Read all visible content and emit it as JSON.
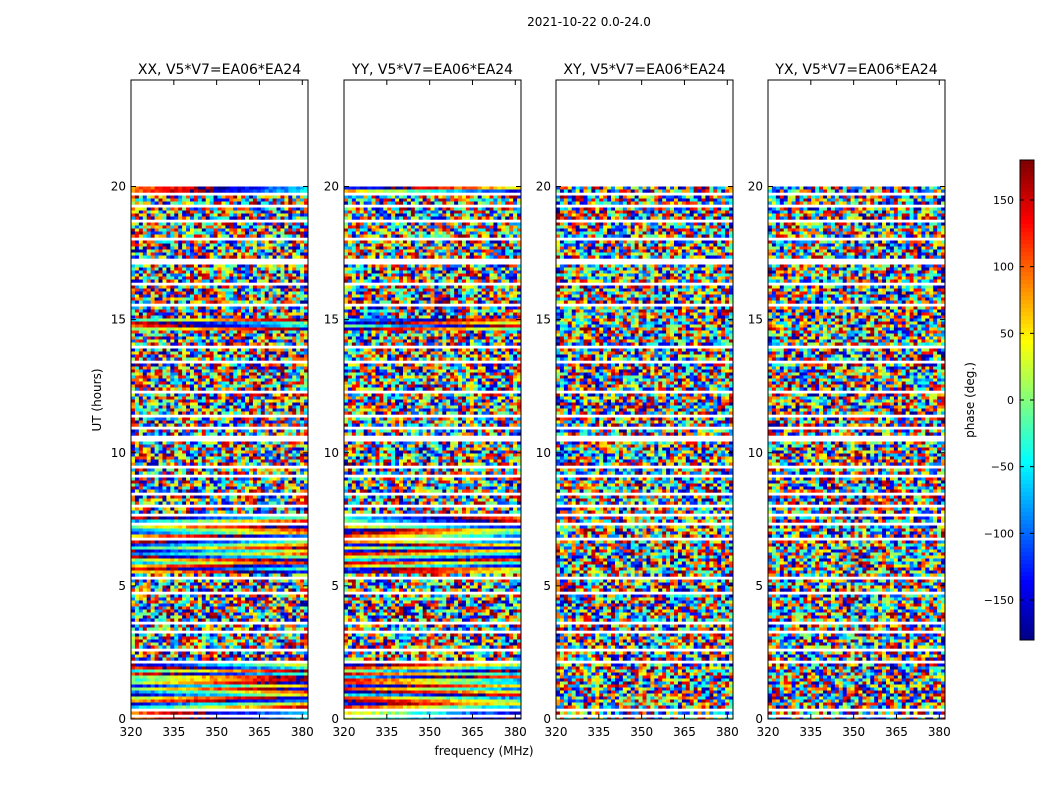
{
  "chart_data": {
    "type": "heatmap",
    "suptitle": "2021-10-22 0.0-24.0",
    "ylabel": "UT (hours)",
    "xlabel": "frequency (MHz)",
    "xlim": [
      320,
      382
    ],
    "ylim": [
      0,
      24
    ],
    "xticks": [
      320,
      335,
      350,
      365,
      380
    ],
    "yticks": [
      0,
      5,
      10,
      15,
      20
    ],
    "panels": [
      {
        "title": "XX, V5*V7=EA06*EA24",
        "pol": "XX",
        "coherent": true
      },
      {
        "title": "YY, V5*V7=EA06*EA24",
        "pol": "YY",
        "coherent": true
      },
      {
        "title": "XY, V5*V7=EA06*EA24",
        "pol": "XY",
        "coherent": false
      },
      {
        "title": "YX, V5*V7=EA06*EA24",
        "pol": "YX",
        "coherent": false
      }
    ],
    "colorbar": {
      "label": "phase (deg.)",
      "range": [
        -180,
        180
      ],
      "ticks": [
        150,
        100,
        50,
        0,
        -50,
        -100,
        -150
      ],
      "tick_labels": [
        "150",
        "100",
        "50",
        "0",
        "−50",
        "−100",
        "−150"
      ],
      "colormap": "jet"
    },
    "data_end_ut": 20,
    "flagged_gaps_ut": [
      [
        0.08,
        0.18
      ],
      [
        0.35,
        0.45
      ],
      [
        1.65,
        1.72
      ],
      [
        2.15,
        2.3
      ],
      [
        2.6,
        2.68
      ],
      [
        3.3,
        3.4
      ],
      [
        3.55,
        3.7
      ],
      [
        4.75,
        4.85
      ],
      [
        5.3,
        5.4
      ],
      [
        5.7,
        5.78
      ],
      [
        6.4,
        6.45
      ],
      [
        6.8,
        6.9
      ],
      [
        7.3,
        7.4
      ],
      [
        7.7,
        7.8
      ],
      [
        8.05,
        8.15
      ],
      [
        8.45,
        8.55
      ],
      [
        8.85,
        8.92
      ],
      [
        9.15,
        9.25
      ],
      [
        9.45,
        9.55
      ],
      [
        10.5,
        10.65
      ],
      [
        10.9,
        11.0
      ],
      [
        11.4,
        11.48
      ],
      [
        12.3,
        12.38
      ],
      [
        12.8,
        12.9
      ],
      [
        13.4,
        13.48
      ],
      [
        14.0,
        14.08
      ],
      [
        14.6,
        14.7
      ],
      [
        15.55,
        15.65
      ],
      [
        16.3,
        16.4
      ],
      [
        17.15,
        17.3
      ],
      [
        17.55,
        17.62
      ],
      [
        18.0,
        18.1
      ],
      [
        18.7,
        18.78
      ],
      [
        19.3,
        19.42
      ],
      [
        19.75,
        19.82
      ]
    ]
  }
}
